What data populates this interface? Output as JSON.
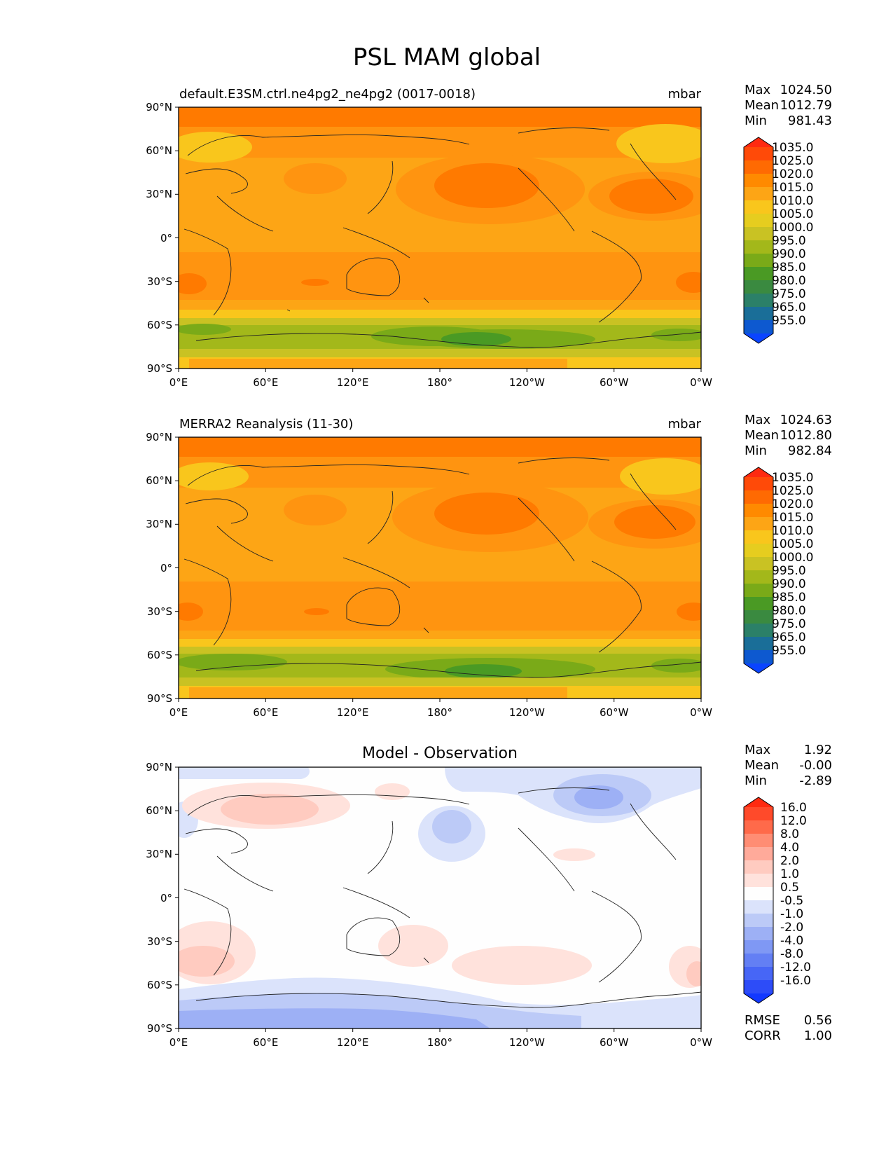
{
  "title": "PSL MAM global",
  "lon_ticks": [
    "0°E",
    "60°E",
    "120°E",
    "180°",
    "120°W",
    "60°W",
    "0°W"
  ],
  "lat_ticks": [
    "90°N",
    "60°N",
    "30°N",
    "0°",
    "30°S",
    "60°S",
    "90°S"
  ],
  "panels": [
    {
      "title_left": "default.E3SM.ctrl.ne4pg2_ne4pg2 (0017-0018)",
      "title_center": "",
      "units": "mbar",
      "stat_labels": [
        "Max",
        "Mean",
        "Min"
      ],
      "stat_values": [
        "1024.50",
        "1012.79",
        "981.43"
      ],
      "colorbar_labels": [
        "1035.0",
        "1025.0",
        "1020.0",
        "1015.0",
        "1010.0",
        "1005.0",
        "1000.0",
        "995.0",
        "990.0",
        "985.0",
        "980.0",
        "975.0",
        "965.0",
        "955.0"
      ],
      "colorbar_colors": [
        "#ff2a10",
        "#ff4a08",
        "#ff6a02",
        "#ff8a00",
        "#fda515",
        "#f9c61c",
        "#e6cd1f",
        "#c9c223",
        "#a3b81a",
        "#7aaa18",
        "#4a9a24",
        "#3a8a40",
        "#2b8068",
        "#1a6e98",
        "#0d59d0",
        "#0a44ff"
      ],
      "extra_labels": [],
      "extra_values": []
    },
    {
      "title_left": "MERRA2 Reanalysis (11-30)",
      "title_center": "",
      "units": "mbar",
      "stat_labels": [
        "Max",
        "Mean",
        "Min"
      ],
      "stat_values": [
        "1024.63",
        "1012.80",
        "982.84"
      ],
      "colorbar_labels": [
        "1035.0",
        "1025.0",
        "1020.0",
        "1015.0",
        "1010.0",
        "1005.0",
        "1000.0",
        "995.0",
        "990.0",
        "985.0",
        "980.0",
        "975.0",
        "965.0",
        "955.0"
      ],
      "colorbar_colors": [
        "#ff2a10",
        "#ff4a08",
        "#ff6a02",
        "#ff8a00",
        "#fda515",
        "#f9c61c",
        "#e6cd1f",
        "#c9c223",
        "#a3b81a",
        "#7aaa18",
        "#4a9a24",
        "#3a8a40",
        "#2b8068",
        "#1a6e98",
        "#0d59d0",
        "#0a44ff"
      ],
      "extra_labels": [],
      "extra_values": []
    },
    {
      "title_left": "",
      "title_center": "Model - Observation",
      "units": "",
      "stat_labels": [
        "Max",
        "Mean",
        "Min"
      ],
      "stat_values": [
        "1.92",
        "-0.00",
        "-2.89"
      ],
      "colorbar_labels": [
        "16.0",
        "12.0",
        "8.0",
        "4.0",
        "2.0",
        "1.0",
        "0.5",
        "-0.5",
        "-1.0",
        "-2.0",
        "-4.0",
        "-8.0",
        "-12.0",
        "-16.0"
      ],
      "colorbar_colors": [
        "#ff2a10",
        "#ff4a2a",
        "#ff6a4a",
        "#ff8d74",
        "#ffaa9a",
        "#ffcbc0",
        "#ffe2dc",
        "#fefefe",
        "#dbe3fb",
        "#bccaf7",
        "#9db0f5",
        "#7f98f4",
        "#637ff4",
        "#4766f6",
        "#2d4cf8",
        "#1238ff"
      ],
      "extra_labels": [
        "RMSE",
        "CORR"
      ],
      "extra_values": [
        "0.56",
        "1.00"
      ]
    }
  ]
}
